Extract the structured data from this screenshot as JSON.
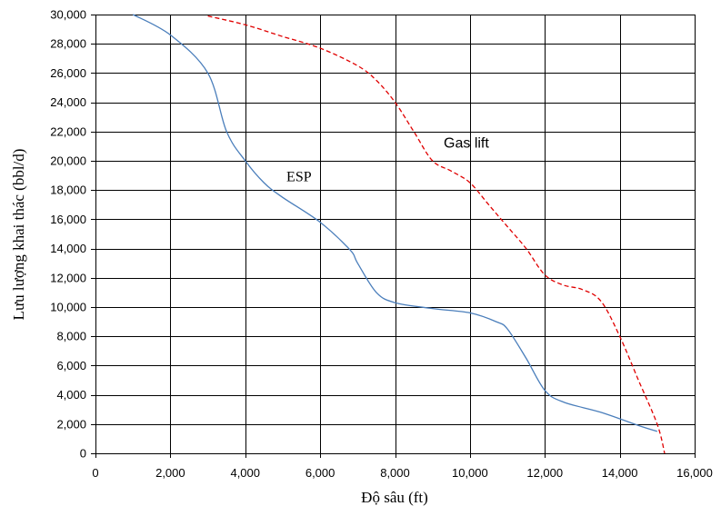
{
  "chart_data": {
    "type": "line",
    "title": "",
    "xlabel": "Độ sâu (ft)",
    "ylabel": "Lưu lượng khai thác (bbl/d)",
    "xlim": [
      0,
      16000
    ],
    "ylim": [
      0,
      30000
    ],
    "x_ticks": [
      "0",
      "2,000",
      "4,000",
      "6,000",
      "8,000",
      "10,000",
      "12,000",
      "14,000",
      "16,000"
    ],
    "y_ticks": [
      "0",
      "2,000",
      "4,000",
      "6,000",
      "8,000",
      "10,000",
      "12,000",
      "14,000",
      "16,000",
      "18,000",
      "20,000",
      "22,000",
      "24,000",
      "26,000",
      "28,000",
      "30,000"
    ],
    "grid": true,
    "series": [
      {
        "name": "ESP",
        "color": "#4a7ebb",
        "dash": "solid",
        "label_at": [
          5100,
          18600
        ],
        "points": [
          [
            1000,
            30000
          ],
          [
            2000,
            28600
          ],
          [
            3000,
            26000
          ],
          [
            3500,
            22000
          ],
          [
            4000,
            20000
          ],
          [
            4500,
            18500
          ],
          [
            5000,
            17500
          ],
          [
            6000,
            15800
          ],
          [
            6800,
            13900
          ],
          [
            7000,
            13000
          ],
          [
            7500,
            11000
          ],
          [
            8000,
            10300
          ],
          [
            9000,
            9900
          ],
          [
            10000,
            9600
          ],
          [
            10700,
            9000
          ],
          [
            11000,
            8500
          ],
          [
            11500,
            6500
          ],
          [
            12000,
            4300
          ],
          [
            12500,
            3500
          ],
          [
            13500,
            2800
          ],
          [
            14500,
            1900
          ],
          [
            15000,
            1500
          ]
        ]
      },
      {
        "name": "Gas lift",
        "color": "#e00000",
        "dash": "dashed",
        "label_at": [
          9300,
          20900
        ],
        "points": [
          [
            3000,
            29900
          ],
          [
            4000,
            29300
          ],
          [
            5000,
            28500
          ],
          [
            6000,
            27700
          ],
          [
            7000,
            26500
          ],
          [
            7500,
            25500
          ],
          [
            8000,
            24000
          ],
          [
            8500,
            22000
          ],
          [
            9000,
            20000
          ],
          [
            9500,
            19300
          ],
          [
            10000,
            18500
          ],
          [
            10500,
            17000
          ],
          [
            11000,
            15500
          ],
          [
            11500,
            14000
          ],
          [
            12000,
            12200
          ],
          [
            12500,
            11500
          ],
          [
            13000,
            11200
          ],
          [
            13500,
            10400
          ],
          [
            14000,
            8000
          ],
          [
            14500,
            5000
          ],
          [
            15000,
            2000
          ],
          [
            15200,
            0
          ]
        ]
      }
    ]
  }
}
